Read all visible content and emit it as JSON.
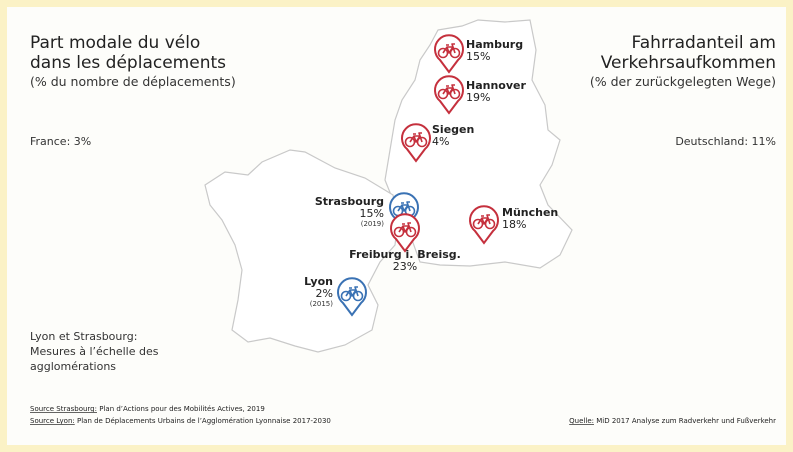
{
  "header": {
    "left_title_line1": "Part modale du vélo",
    "left_title_line2": "dans les déplacements",
    "left_subtitle": "(% du nombre de déplacements)",
    "right_title_line1": "Fahrradanteil am",
    "right_title_line2": "Verkehrsaufkommen",
    "right_subtitle": "(% der zurückgelegten Wege)"
  },
  "totals": {
    "france": "France: 3%",
    "germany": "Deutschland: 11%"
  },
  "cities": [
    {
      "name": "Hamburg",
      "share": "15%",
      "color": "#c5303d"
    },
    {
      "name": "Hannover",
      "share": "19%",
      "color": "#c5303d"
    },
    {
      "name": "Siegen",
      "share": "4%",
      "color": "#c5303d"
    },
    {
      "name": "Strasbourg",
      "share": "15%",
      "year": "(2019)",
      "color": "#3a72b4"
    },
    {
      "name": "Freiburg i. Breisg.",
      "share": "23%",
      "color": "#c5303d"
    },
    {
      "name": "München",
      "share": "18%",
      "color": "#c5303d"
    },
    {
      "name": "Lyon",
      "share": "2%",
      "year": "(2015)",
      "color": "#3a72b4"
    }
  ],
  "note": {
    "line1": "Lyon et Strasbourg:",
    "line2": "Mesures à l’échelle des",
    "line3": "agglomérations"
  },
  "sources": {
    "strasbourg_label": "Source Strasbourg:",
    "strasbourg_text": "Plan d’Actions pour des Mobilités Actives, 2019",
    "lyon_label": "Source Lyon:",
    "lyon_text": "Plan de Déplacements Urbains de l’Agglomération Lyonnaise 2017-2030",
    "de_label": "Quelle:",
    "de_text": "MiD 2017 Analyse zum Radverkehr und Fußverkehr"
  }
}
